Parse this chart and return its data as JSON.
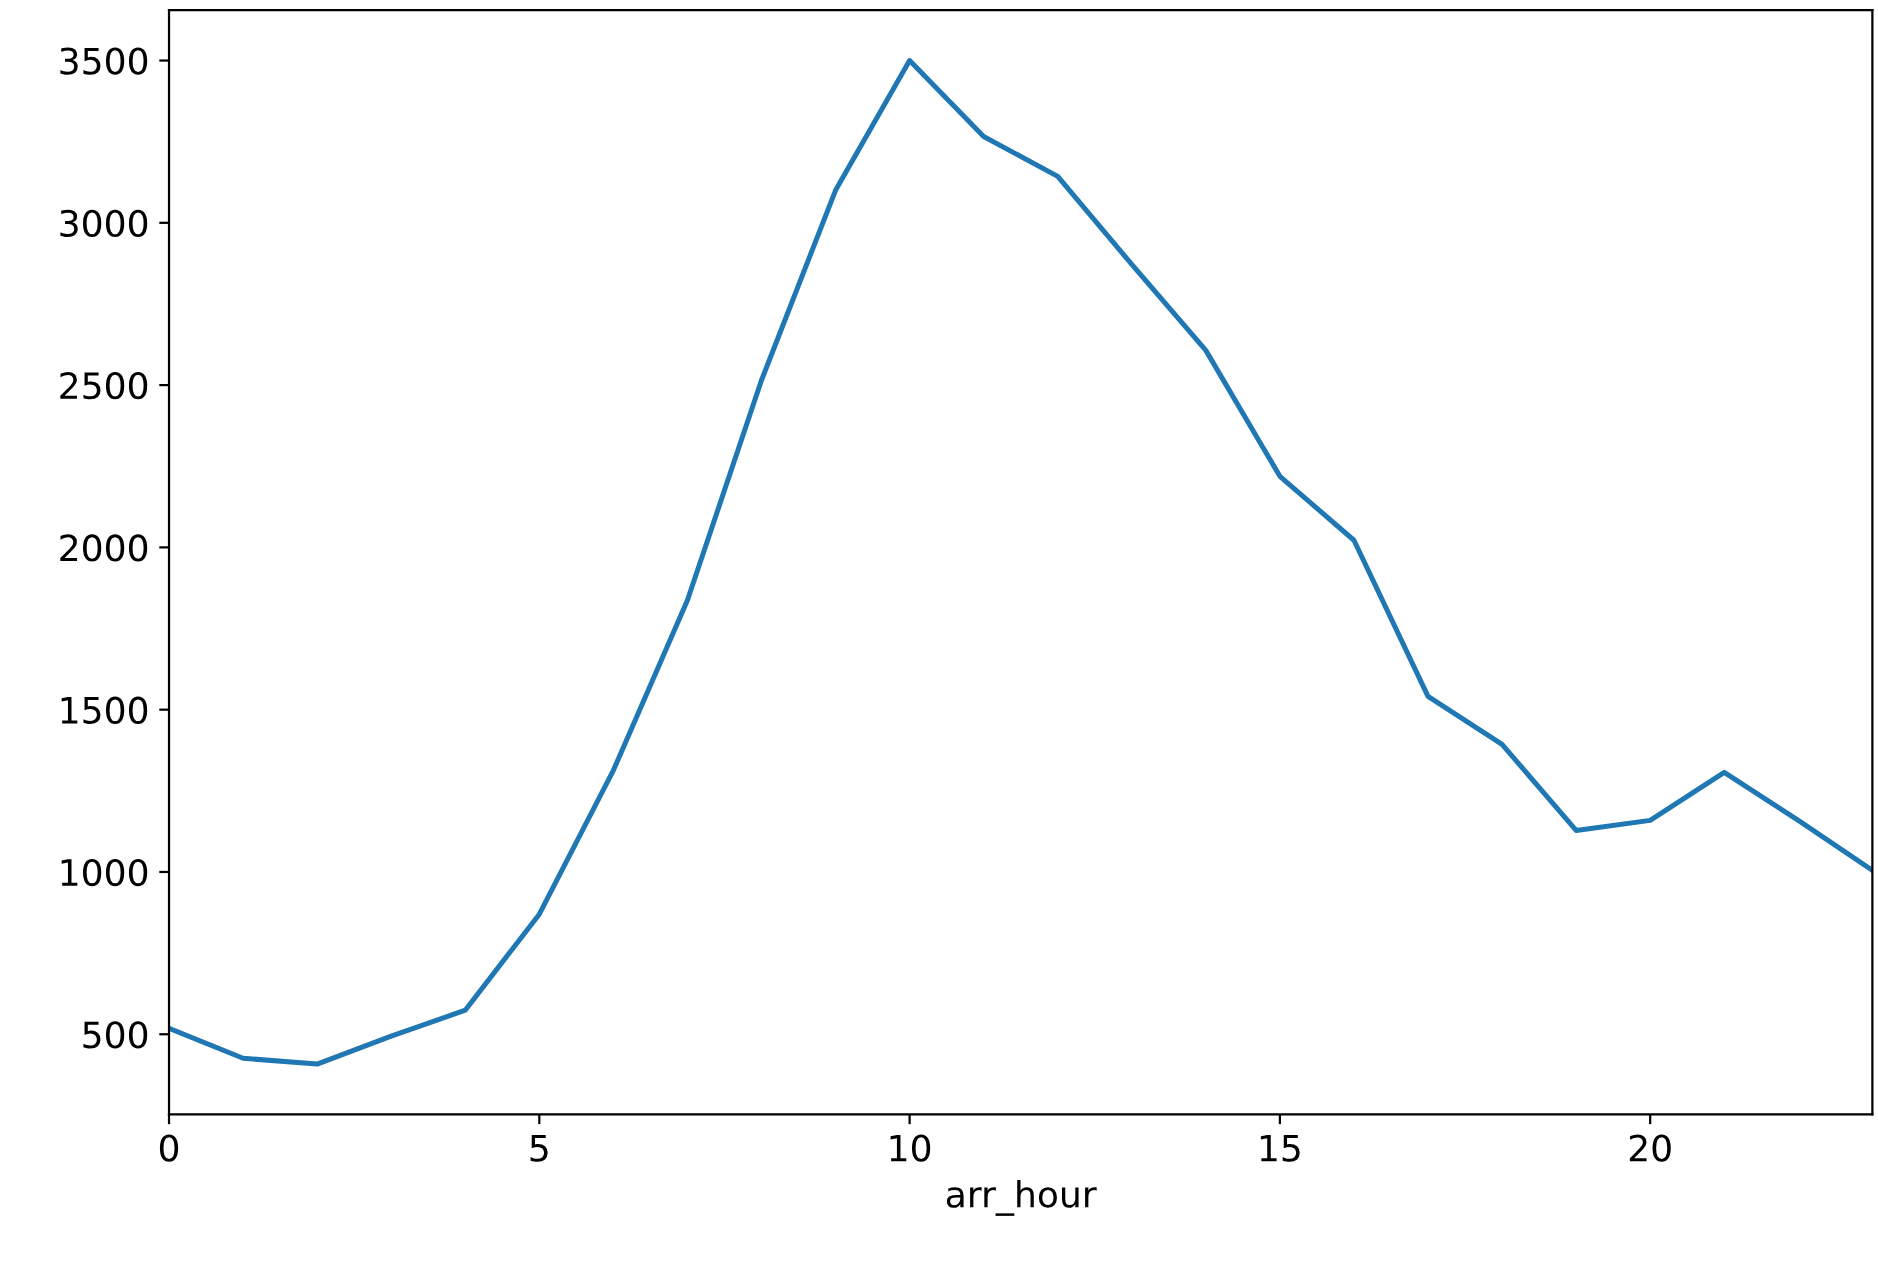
{
  "chart_data": {
    "type": "line",
    "xlabel": "arr_hour",
    "x": [
      0,
      1,
      2,
      3,
      4,
      5,
      6,
      7,
      8,
      9,
      10,
      11,
      12,
      13,
      14,
      15,
      16,
      17,
      18,
      19,
      20,
      21,
      22,
      23
    ],
    "series": [
      {
        "color": "#1f77b4",
        "values": [
          518,
          426,
          408,
          494,
          574,
          870,
          1313,
          1837,
          2515,
          3100,
          3500,
          3266,
          3143,
          2872,
          2607,
          2219,
          2022,
          1541,
          1393,
          1128,
          1159,
          1307,
          1159,
          1005
        ]
      }
    ],
    "xlim": [
      0,
      23
    ],
    "xticks": [
      0,
      5,
      10,
      15,
      20
    ],
    "ylim": [
      253,
      3655
    ],
    "yticks": [
      500,
      1000,
      1500,
      2000,
      2500,
      3000,
      3500
    ],
    "grid": false,
    "legend": false,
    "marker": "none",
    "line_style": "solid"
  }
}
